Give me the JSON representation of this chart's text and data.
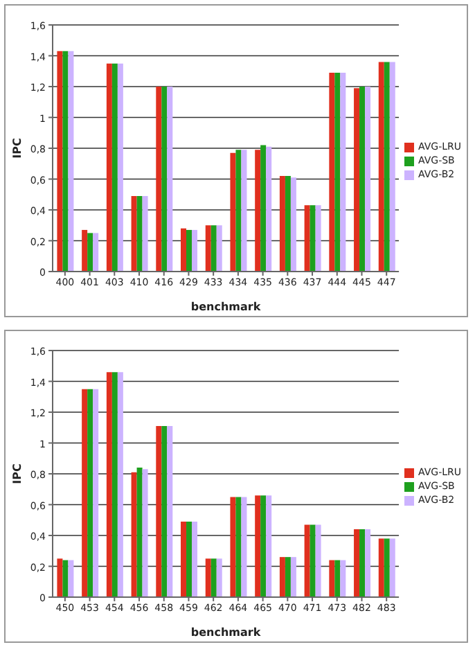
{
  "chart_data": [
    {
      "type": "bar",
      "xlabel": "benchmark",
      "ylabel": "IPC",
      "categories": [
        "400",
        "401",
        "403",
        "410",
        "416",
        "429",
        "433",
        "434",
        "435",
        "436",
        "437",
        "444",
        "445",
        "447"
      ],
      "series": [
        {
          "name": "AVG-LRU",
          "color": "#e0301e",
          "values": [
            1.43,
            0.27,
            1.35,
            0.49,
            1.2,
            0.28,
            0.3,
            0.77,
            0.79,
            0.62,
            0.43,
            1.29,
            1.19,
            1.36
          ]
        },
        {
          "name": "AVG-SB",
          "color": "#1ea01e",
          "values": [
            1.43,
            0.25,
            1.35,
            0.49,
            1.2,
            0.27,
            0.3,
            0.79,
            0.82,
            0.62,
            0.43,
            1.29,
            1.2,
            1.36
          ]
        },
        {
          "name": "AVG-B2",
          "color": "#ccb3ff",
          "values": [
            1.43,
            0.25,
            1.35,
            0.49,
            1.2,
            0.27,
            0.3,
            0.79,
            0.81,
            0.61,
            0.43,
            1.29,
            1.2,
            1.36
          ]
        }
      ],
      "ylim": [
        0,
        1.6
      ],
      "yticks": [
        {
          "value": 0,
          "label": "0"
        },
        {
          "value": 0.2,
          "label": "0,2"
        },
        {
          "value": 0.4,
          "label": "0,4"
        },
        {
          "value": 0.6,
          "label": "0,6"
        },
        {
          "value": 0.8,
          "label": "0,8"
        },
        {
          "value": 1,
          "label": "1"
        },
        {
          "value": 1.2,
          "label": "1,2"
        },
        {
          "value": 1.4,
          "label": "1,4"
        },
        {
          "value": 1.6,
          "label": "1,6"
        }
      ],
      "grid": "y",
      "legend": "right"
    },
    {
      "type": "bar",
      "xlabel": "benchmark",
      "ylabel": "IPC",
      "categories": [
        "450",
        "453",
        "454",
        "456",
        "458",
        "459",
        "462",
        "464",
        "465",
        "470",
        "471",
        "473",
        "482",
        "483"
      ],
      "series": [
        {
          "name": "AVG-LRU",
          "color": "#e0301e",
          "values": [
            0.25,
            1.35,
            1.46,
            0.81,
            1.11,
            0.49,
            0.25,
            0.65,
            0.66,
            0.26,
            0.47,
            0.24,
            0.44,
            0.38
          ]
        },
        {
          "name": "AVG-SB",
          "color": "#1ea01e",
          "values": [
            0.24,
            1.35,
            1.46,
            0.84,
            1.11,
            0.49,
            0.25,
            0.65,
            0.66,
            0.26,
            0.47,
            0.24,
            0.44,
            0.38
          ]
        },
        {
          "name": "AVG-B2",
          "color": "#ccb3ff",
          "values": [
            0.24,
            1.35,
            1.46,
            0.83,
            1.11,
            0.49,
            0.25,
            0.65,
            0.66,
            0.26,
            0.47,
            0.24,
            0.44,
            0.38
          ]
        }
      ],
      "ylim": [
        0,
        1.6
      ],
      "yticks": [
        {
          "value": 0,
          "label": "0"
        },
        {
          "value": 0.2,
          "label": "0,2"
        },
        {
          "value": 0.4,
          "label": "0,4"
        },
        {
          "value": 0.6,
          "label": "0,6"
        },
        {
          "value": 0.8,
          "label": "0,8"
        },
        {
          "value": 1,
          "label": "1"
        },
        {
          "value": 1.2,
          "label": "1,2"
        },
        {
          "value": 1.4,
          "label": "1,4"
        },
        {
          "value": 1.6,
          "label": "1,6"
        }
      ],
      "grid": "y",
      "legend": "right"
    }
  ]
}
